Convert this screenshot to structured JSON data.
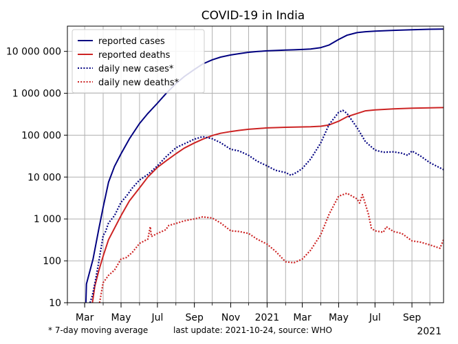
{
  "chart_data": {
    "type": "line",
    "title": "COVID-19 in India",
    "yscale": "log",
    "ylim": [
      10,
      40000000
    ],
    "xlim": [
      "2020-02-01",
      "2021-10-24"
    ],
    "grid": true,
    "legend_position": "top-left",
    "y_ticks": [
      {
        "value": 10,
        "label": "10"
      },
      {
        "value": 100,
        "label": "100"
      },
      {
        "value": 1000,
        "label": "1 000"
      },
      {
        "value": 10000,
        "label": "10 000"
      },
      {
        "value": 100000,
        "label": "100 000"
      },
      {
        "value": 1000000,
        "label": "1 000 000"
      },
      {
        "value": 10000000,
        "label": "10 000 000"
      }
    ],
    "x_ticks": [
      {
        "date": "2020-03-01",
        "label": "Mar"
      },
      {
        "date": "2020-05-01",
        "label": "May"
      },
      {
        "date": "2020-07-01",
        "label": "Jul"
      },
      {
        "date": "2020-09-01",
        "label": "Sep"
      },
      {
        "date": "2020-11-01",
        "label": "Nov"
      },
      {
        "date": "2021-01-01",
        "label": "2021"
      },
      {
        "date": "2021-03-01",
        "label": "Mar"
      },
      {
        "date": "2021-05-01",
        "label": "May"
      },
      {
        "date": "2021-07-01",
        "label": "Jul"
      },
      {
        "date": "2021-09-01",
        "label": "Sep"
      }
    ],
    "x_corner_label": "2021",
    "footnote_left": "* 7-day moving average",
    "footnote_right": "last update: 2021-10-24, source: WHO",
    "series": [
      {
        "name": "reported cases",
        "color": "#000080",
        "style": "solid",
        "points": [
          [
            "2020-03-03",
            10
          ],
          [
            "2020-03-04",
            28
          ],
          [
            "2020-03-15",
            110
          ],
          [
            "2020-03-25",
            600
          ],
          [
            "2020-04-01",
            1900
          ],
          [
            "2020-04-10",
            7500
          ],
          [
            "2020-04-20",
            18000
          ],
          [
            "2020-05-01",
            36000
          ],
          [
            "2020-05-15",
            82000
          ],
          [
            "2020-06-01",
            190000
          ],
          [
            "2020-06-15",
            330000
          ],
          [
            "2020-07-01",
            580000
          ],
          [
            "2020-07-15",
            970000
          ],
          [
            "2020-08-01",
            1700000
          ],
          [
            "2020-08-15",
            2500000
          ],
          [
            "2020-09-01",
            3700000
          ],
          [
            "2020-09-15",
            5000000
          ],
          [
            "2020-10-01",
            6300000
          ],
          [
            "2020-10-15",
            7300000
          ],
          [
            "2020-11-01",
            8200000
          ],
          [
            "2020-11-15",
            8800000
          ],
          [
            "2020-12-01",
            9500000
          ],
          [
            "2020-12-15",
            9900000
          ],
          [
            "2021-01-01",
            10300000
          ],
          [
            "2021-01-15",
            10500000
          ],
          [
            "2021-02-01",
            10750000
          ],
          [
            "2021-02-15",
            10900000
          ],
          [
            "2021-03-01",
            11100000
          ],
          [
            "2021-03-15",
            11400000
          ],
          [
            "2021-04-01",
            12300000
          ],
          [
            "2021-04-15",
            14200000
          ],
          [
            "2021-05-01",
            19200000
          ],
          [
            "2021-05-15",
            24300000
          ],
          [
            "2021-06-01",
            28000000
          ],
          [
            "2021-06-15",
            29500000
          ],
          [
            "2021-07-01",
            30400000
          ],
          [
            "2021-08-01",
            31700000
          ],
          [
            "2021-09-01",
            32800000
          ],
          [
            "2021-10-01",
            33700000
          ],
          [
            "2021-10-24",
            34100000
          ]
        ]
      },
      {
        "name": "reported deaths",
        "color": "#cc2222",
        "style": "solid",
        "points": [
          [
            "2020-03-14",
            10
          ],
          [
            "2020-03-18",
            25
          ],
          [
            "2020-03-25",
            60
          ],
          [
            "2020-04-01",
            130
          ],
          [
            "2020-04-10",
            320
          ],
          [
            "2020-04-20",
            600
          ],
          [
            "2020-05-01",
            1200
          ],
          [
            "2020-05-15",
            2700
          ],
          [
            "2020-06-01",
            5500
          ],
          [
            "2020-06-15",
            10000
          ],
          [
            "2020-07-01",
            17000
          ],
          [
            "2020-07-15",
            24000
          ],
          [
            "2020-08-01",
            36000
          ],
          [
            "2020-08-15",
            49000
          ],
          [
            "2020-09-01",
            65000
          ],
          [
            "2020-09-15",
            80000
          ],
          [
            "2020-10-01",
            98000
          ],
          [
            "2020-10-15",
            111000
          ],
          [
            "2020-11-01",
            122000
          ],
          [
            "2020-11-15",
            130000
          ],
          [
            "2020-12-01",
            138000
          ],
          [
            "2020-12-15",
            143000
          ],
          [
            "2021-01-01",
            149000
          ],
          [
            "2021-01-15",
            151500
          ],
          [
            "2021-02-01",
            154000
          ],
          [
            "2021-03-01",
            157000
          ],
          [
            "2021-03-15",
            159000
          ],
          [
            "2021-04-01",
            163000
          ],
          [
            "2021-04-15",
            175000
          ],
          [
            "2021-05-01",
            215000
          ],
          [
            "2021-05-15",
            275000
          ],
          [
            "2021-06-01",
            330000
          ],
          [
            "2021-06-15",
            380000
          ],
          [
            "2021-07-01",
            400000
          ],
          [
            "2021-08-01",
            425000
          ],
          [
            "2021-09-01",
            440000
          ],
          [
            "2021-10-01",
            450000
          ],
          [
            "2021-10-24",
            455000
          ]
        ]
      },
      {
        "name": "daily new cases*",
        "color": "#000080",
        "style": "dotted",
        "points": [
          [
            "2020-03-10",
            10
          ],
          [
            "2020-03-14",
            15
          ],
          [
            "2020-03-20",
            40
          ],
          [
            "2020-03-25",
            100
          ],
          [
            "2020-04-01",
            400
          ],
          [
            "2020-04-05",
            500
          ],
          [
            "2020-04-10",
            800
          ],
          [
            "2020-04-20",
            1200
          ],
          [
            "2020-05-01",
            2500
          ],
          [
            "2020-05-10",
            3500
          ],
          [
            "2020-05-20",
            5500
          ],
          [
            "2020-06-01",
            8500
          ],
          [
            "2020-06-15",
            11500
          ],
          [
            "2020-07-01",
            18500
          ],
          [
            "2020-07-15",
            30000
          ],
          [
            "2020-08-01",
            50000
          ],
          [
            "2020-08-15",
            62000
          ],
          [
            "2020-09-01",
            80000
          ],
          [
            "2020-09-15",
            92000
          ],
          [
            "2020-10-01",
            82000
          ],
          [
            "2020-10-15",
            66000
          ],
          [
            "2020-11-01",
            46000
          ],
          [
            "2020-11-15",
            42000
          ],
          [
            "2020-12-01",
            33000
          ],
          [
            "2020-12-15",
            24000
          ],
          [
            "2021-01-01",
            18500
          ],
          [
            "2021-01-15",
            14500
          ],
          [
            "2021-02-01",
            12800
          ],
          [
            "2021-02-10",
            11000
          ],
          [
            "2021-02-20",
            13000
          ],
          [
            "2021-03-01",
            16000
          ],
          [
            "2021-03-15",
            27000
          ],
          [
            "2021-04-01",
            65000
          ],
          [
            "2021-04-15",
            180000
          ],
          [
            "2021-05-01",
            350000
          ],
          [
            "2021-05-08",
            390000
          ],
          [
            "2021-05-15",
            330000
          ],
          [
            "2021-06-01",
            150000
          ],
          [
            "2021-06-15",
            70000
          ],
          [
            "2021-07-01",
            44000
          ],
          [
            "2021-07-15",
            39000
          ],
          [
            "2021-08-01",
            40000
          ],
          [
            "2021-08-15",
            37000
          ],
          [
            "2021-08-25",
            33000
          ],
          [
            "2021-09-01",
            42000
          ],
          [
            "2021-09-15",
            32000
          ],
          [
            "2021-10-01",
            22000
          ],
          [
            "2021-10-24",
            15000
          ]
        ]
      },
      {
        "name": "daily new deaths*",
        "color": "#cc2222",
        "style": "dotted",
        "points": [
          [
            "2020-03-26",
            10
          ],
          [
            "2020-04-01",
            30
          ],
          [
            "2020-04-10",
            45
          ],
          [
            "2020-04-20",
            60
          ],
          [
            "2020-05-01",
            110
          ],
          [
            "2020-05-10",
            120
          ],
          [
            "2020-05-20",
            160
          ],
          [
            "2020-06-01",
            260
          ],
          [
            "2020-06-15",
            330
          ],
          [
            "2020-06-19",
            650
          ],
          [
            "2020-06-21",
            380
          ],
          [
            "2020-07-01",
            450
          ],
          [
            "2020-07-15",
            550
          ],
          [
            "2020-07-20",
            700
          ],
          [
            "2020-08-01",
            780
          ],
          [
            "2020-08-15",
            900
          ],
          [
            "2020-09-01",
            1000
          ],
          [
            "2020-09-15",
            1120
          ],
          [
            "2020-10-01",
            1050
          ],
          [
            "2020-10-15",
            800
          ],
          [
            "2020-11-01",
            520
          ],
          [
            "2020-11-15",
            500
          ],
          [
            "2020-12-01",
            450
          ],
          [
            "2020-12-15",
            330
          ],
          [
            "2021-01-01",
            250
          ],
          [
            "2021-01-15",
            170
          ],
          [
            "2021-02-01",
            95
          ],
          [
            "2021-02-15",
            90
          ],
          [
            "2021-03-01",
            110
          ],
          [
            "2021-03-15",
            180
          ],
          [
            "2021-04-01",
            420
          ],
          [
            "2021-04-15",
            1300
          ],
          [
            "2021-05-01",
            3500
          ],
          [
            "2021-05-15",
            4100
          ],
          [
            "2021-06-01",
            3000
          ],
          [
            "2021-06-05",
            2400
          ],
          [
            "2021-06-10",
            3800
          ],
          [
            "2021-06-20",
            1300
          ],
          [
            "2021-06-25",
            600
          ],
          [
            "2021-07-01",
            520
          ],
          [
            "2021-07-15",
            480
          ],
          [
            "2021-07-20",
            650
          ],
          [
            "2021-08-01",
            500
          ],
          [
            "2021-08-15",
            450
          ],
          [
            "2021-09-01",
            300
          ],
          [
            "2021-09-15",
            280
          ],
          [
            "2021-10-01",
            240
          ],
          [
            "2021-10-18",
            200
          ],
          [
            "2021-10-24",
            320
          ]
        ]
      }
    ]
  }
}
